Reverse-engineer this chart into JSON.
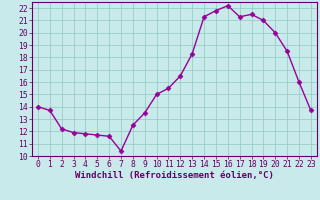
{
  "x": [
    0,
    1,
    2,
    3,
    4,
    5,
    6,
    7,
    8,
    9,
    10,
    11,
    12,
    13,
    14,
    15,
    16,
    17,
    18,
    19,
    20,
    21,
    22,
    23
  ],
  "y": [
    14.0,
    13.7,
    12.2,
    11.9,
    11.8,
    11.7,
    11.6,
    10.4,
    12.5,
    13.5,
    15.0,
    15.5,
    16.5,
    18.3,
    21.3,
    21.8,
    22.2,
    21.3,
    21.5,
    21.0,
    20.0,
    18.5,
    16.0,
    13.7
  ],
  "line_color": "#990099",
  "marker": "D",
  "marker_size": 2.5,
  "bg_color": "#c8eaea",
  "grid_color": "#90c8c0",
  "xlim": [
    -0.5,
    23.5
  ],
  "ylim": [
    10,
    22.5
  ],
  "yticks": [
    10,
    11,
    12,
    13,
    14,
    15,
    16,
    17,
    18,
    19,
    20,
    21,
    22
  ],
  "xticks": [
    0,
    1,
    2,
    3,
    4,
    5,
    6,
    7,
    8,
    9,
    10,
    11,
    12,
    13,
    14,
    15,
    16,
    17,
    18,
    19,
    20,
    21,
    22,
    23
  ],
  "xlabel": "Windchill (Refroidissement éolien,°C)",
  "xlabel_fontsize": 6.5,
  "tick_fontsize": 5.8,
  "line_width": 1.0,
  "text_color": "#660066",
  "spine_color": "#660066"
}
